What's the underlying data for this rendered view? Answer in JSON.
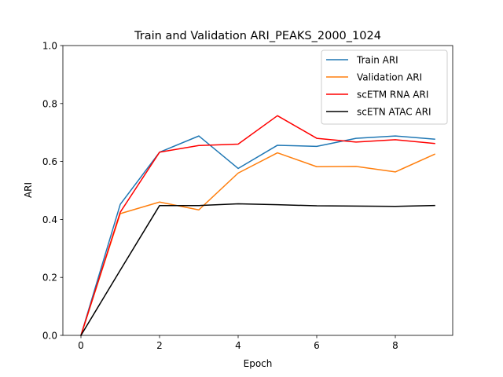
{
  "chart_data": {
    "type": "line",
    "title": "Train and Validation ARI_PEAKS_2000_1024",
    "xlabel": "Epoch",
    "ylabel": "ARI",
    "xlim": [
      -0.46,
      9.46
    ],
    "ylim": [
      0.0,
      1.0
    ],
    "xticks": [
      "0",
      "2",
      "4",
      "6",
      "8"
    ],
    "yticks": [
      "0.0",
      "0.2",
      "0.4",
      "0.6",
      "0.8",
      "1.0"
    ],
    "grid": false,
    "legend_position": "upper right",
    "x": [
      0,
      1,
      2,
      3,
      4,
      5,
      6,
      7,
      8,
      9
    ],
    "series": [
      {
        "name": "Train ARI",
        "color": "#1f77b4",
        "values": [
          0.0,
          0.452,
          0.632,
          0.688,
          0.576,
          0.656,
          0.652,
          0.68,
          0.688,
          0.677
        ]
      },
      {
        "name": "Validation ARI",
        "color": "#ff7f0e",
        "values": [
          0.0,
          0.42,
          0.46,
          0.433,
          0.56,
          0.63,
          0.582,
          0.583,
          0.564,
          0.625
        ]
      },
      {
        "name": "scETM RNA ARI",
        "color": "#ff0000",
        "values": [
          0.0,
          0.425,
          0.632,
          0.655,
          0.66,
          0.758,
          0.68,
          0.667,
          0.675,
          0.662
        ]
      },
      {
        "name": "scETN ATAC ARI",
        "color": "#000000",
        "values": [
          0.0,
          0.225,
          0.448,
          0.448,
          0.454,
          0.451,
          0.447,
          0.446,
          0.445,
          0.448
        ]
      }
    ]
  }
}
